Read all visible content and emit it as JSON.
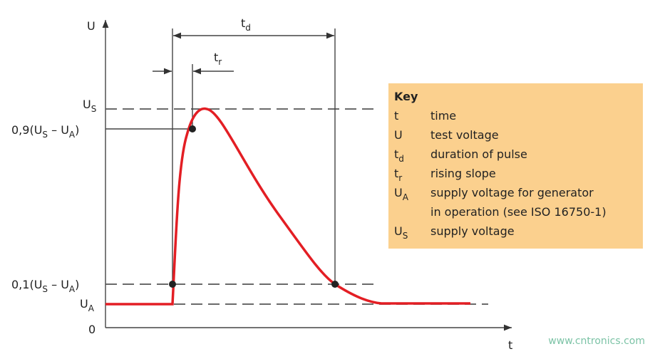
{
  "axes": {
    "y_label": "U",
    "x_label": "t",
    "origin": "0"
  },
  "levels": {
    "us": {
      "main": "U",
      "sub": "S"
    },
    "p90": {
      "parts": [
        "0,9(U",
        "S",
        " – U",
        "A",
        ")"
      ]
    },
    "p10": {
      "parts": [
        "0,1(U",
        "S",
        " – U",
        "A",
        ")"
      ]
    },
    "ua": {
      "main": "U",
      "sub": "A"
    }
  },
  "durations": {
    "td": {
      "main": "t",
      "sub": "d"
    },
    "tr": {
      "main": "t",
      "sub": "r"
    }
  },
  "key": {
    "title": "Key",
    "items": [
      {
        "symbol": "t",
        "description": [
          "time"
        ]
      },
      {
        "symbol": "U",
        "description": [
          "test voltage"
        ]
      },
      {
        "symbol": "t",
        "symbol_sub": "d",
        "description": [
          "duration of pulse"
        ]
      },
      {
        "symbol": "t",
        "symbol_sub": "r",
        "description": [
          "rising slope"
        ]
      },
      {
        "symbol": "U",
        "symbol_sub": "A",
        "description": [
          "supply voltage for generator",
          "in operation (see ISO 16750-1)"
        ]
      },
      {
        "symbol": "U",
        "symbol_sub": "S",
        "description": [
          "supply voltage"
        ]
      }
    ]
  },
  "watermark": "www.cntronics.com"
}
